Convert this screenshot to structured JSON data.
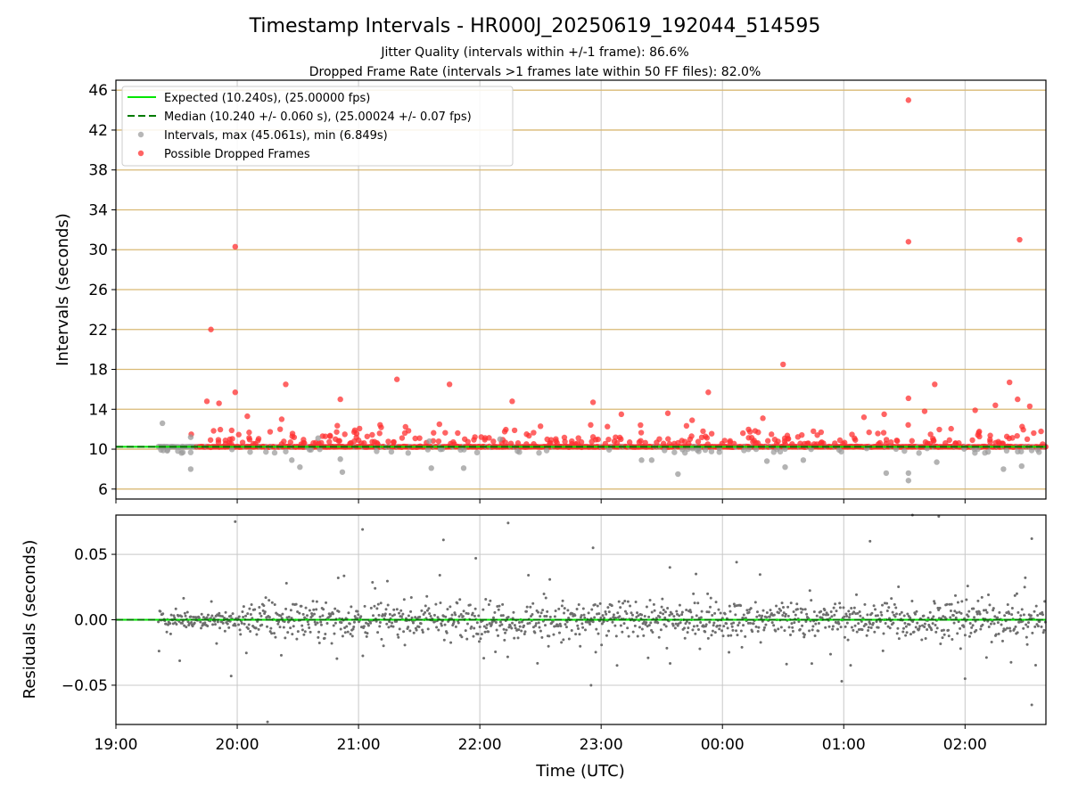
{
  "chart_data": [
    {
      "type": "scatter",
      "title": "Timestamp Intervals - HR000J_20250619_192044_514595",
      "subtitle_1": "Jitter Quality (intervals within +/-1 frame): 86.6%",
      "subtitle_2": "Dropped Frame Rate (intervals >1 frames late within 50 FF files): 82.0%",
      "xlabel": "",
      "ylabel": "Intervals (seconds)",
      "xlim": [
        "19:00",
        "02:40"
      ],
      "ylim": [
        5,
        47
      ],
      "y_ticks": [
        "6",
        "10",
        "14",
        "18",
        "22",
        "26",
        "30",
        "34",
        "38",
        "42",
        "46"
      ],
      "grid": true,
      "legend_position": "top-left",
      "legend": [
        "Expected (10.240s), (25.00000 fps)",
        "Median (10.240 +/- 0.060 s), (25.00024 +/- 0.07 fps)",
        "Intervals, max (45.061s), min (6.849s)",
        "Possible Dropped Frames"
      ],
      "expected_interval": 10.24,
      "median_interval": 10.24,
      "colors": {
        "expected": "#00e600",
        "median": "#007a00",
        "intervals": "#999999",
        "dropped": "#ff3030",
        "grid_horizontal": "#d9b974",
        "grid_vertical": "#c8c8c8"
      },
      "dropped_frame_outliers": [
        {
          "x": "19:59",
          "y": 30.3
        },
        {
          "x": "19:47",
          "y": 22.0
        },
        {
          "x": "19:45",
          "y": 14.8
        },
        {
          "x": "19:51",
          "y": 14.6
        },
        {
          "x": "19:59",
          "y": 15.7
        },
        {
          "x": "20:24",
          "y": 16.5
        },
        {
          "x": "20:51",
          "y": 15.0
        },
        {
          "x": "21:19",
          "y": 17.0
        },
        {
          "x": "21:45",
          "y": 16.5
        },
        {
          "x": "22:16",
          "y": 14.8
        },
        {
          "x": "22:56",
          "y": 14.7
        },
        {
          "x": "23:33",
          "y": 13.6
        },
        {
          "x": "23:53",
          "y": 15.7
        },
        {
          "x": "00:30",
          "y": 18.5
        },
        {
          "x": "01:32",
          "y": 45.0
        },
        {
          "x": "01:32",
          "y": 30.8
        },
        {
          "x": "01:32",
          "y": 15.1
        },
        {
          "x": "01:45",
          "y": 16.5
        },
        {
          "x": "02:27",
          "y": 31.0
        },
        {
          "x": "02:22",
          "y": 16.7
        },
        {
          "x": "02:26",
          "y": 15.0
        },
        {
          "x": "02:32",
          "y": 14.3
        },
        {
          "x": "02:15",
          "y": 14.4
        },
        {
          "x": "02:05",
          "y": 13.9
        },
        {
          "x": "20:05",
          "y": 13.3
        },
        {
          "x": "20:22",
          "y": 13.0
        },
        {
          "x": "21:40",
          "y": 12.5
        },
        {
          "x": "22:30",
          "y": 12.3
        },
        {
          "x": "23:10",
          "y": 13.5
        },
        {
          "x": "23:45",
          "y": 12.9
        },
        {
          "x": "00:20",
          "y": 13.1
        },
        {
          "x": "00:45",
          "y": 11.8
        },
        {
          "x": "01:10",
          "y": 13.2
        },
        {
          "x": "01:20",
          "y": 13.5
        },
        {
          "x": "01:40",
          "y": 13.8
        }
      ],
      "interval_outliers": [
        {
          "x": "19:23",
          "y": 12.6
        },
        {
          "x": "19:37",
          "y": 8.0
        },
        {
          "x": "20:27",
          "y": 8.9
        },
        {
          "x": "20:31",
          "y": 8.2
        },
        {
          "x": "20:51",
          "y": 9.0
        },
        {
          "x": "20:52",
          "y": 7.7
        },
        {
          "x": "21:36",
          "y": 8.1
        },
        {
          "x": "21:52",
          "y": 8.1
        },
        {
          "x": "23:20",
          "y": 8.9
        },
        {
          "x": "23:25",
          "y": 8.9
        },
        {
          "x": "23:38",
          "y": 7.5
        },
        {
          "x": "00:22",
          "y": 8.8
        },
        {
          "x": "00:31",
          "y": 8.2
        },
        {
          "x": "00:40",
          "y": 8.9
        },
        {
          "x": "01:21",
          "y": 7.6
        },
        {
          "x": "01:32",
          "y": 7.6
        },
        {
          "x": "01:32",
          "y": 6.85
        },
        {
          "x": "01:46",
          "y": 8.7
        },
        {
          "x": "02:19",
          "y": 8.0
        },
        {
          "x": "02:28",
          "y": 8.3
        },
        {
          "x": "19:37",
          "y": 11.2
        },
        {
          "x": "20:40",
          "y": 11.1
        },
        {
          "x": "21:35",
          "y": 10.8
        },
        {
          "x": "22:10",
          "y": 11.0
        }
      ],
      "bulk_points_range": {
        "x_start": "19:21",
        "x_end": "02:40",
        "y": 10.24
      }
    },
    {
      "type": "scatter",
      "xlabel": "Time (UTC)",
      "ylabel": "Residuals (seconds)",
      "ylim": [
        -0.08,
        0.08
      ],
      "y_ticks": [
        "−0.05",
        "0.00",
        "0.05"
      ],
      "x_ticks": [
        "19:00",
        "20:00",
        "21:00",
        "22:00",
        "23:00",
        "00:00",
        "01:00",
        "02:00"
      ],
      "grid": true,
      "reference_line": 0.0,
      "residual_outliers": [
        {
          "x": "19:59",
          "y": 0.075
        },
        {
          "x": "20:15",
          "y": -0.078
        },
        {
          "x": "21:02",
          "y": 0.069
        },
        {
          "x": "22:14",
          "y": 0.074
        },
        {
          "x": "21:42",
          "y": 0.061
        },
        {
          "x": "22:56",
          "y": 0.055
        },
        {
          "x": "22:55",
          "y": -0.05
        },
        {
          "x": "01:34",
          "y": 0.08
        },
        {
          "x": "01:47",
          "y": 0.079
        },
        {
          "x": "02:33",
          "y": 0.062
        },
        {
          "x": "02:33",
          "y": -0.065
        },
        {
          "x": "00:59",
          "y": -0.047
        },
        {
          "x": "21:58",
          "y": 0.047
        },
        {
          "x": "02:00",
          "y": -0.045
        },
        {
          "x": "19:57",
          "y": -0.043
        },
        {
          "x": "23:34",
          "y": 0.04
        },
        {
          "x": "00:07",
          "y": 0.044
        },
        {
          "x": "01:13",
          "y": 0.06
        }
      ]
    }
  ]
}
